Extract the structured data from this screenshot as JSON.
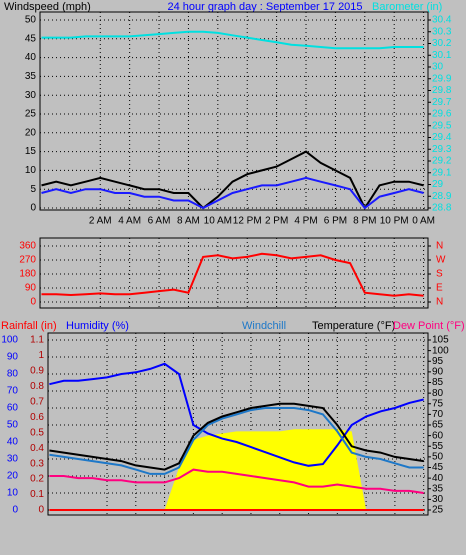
{
  "chart_data": [
    {
      "type": "line",
      "title": "24 hour graph day : September 17 2015",
      "ylabel": "Windspeed (mph)",
      "y2label": "Barometer (in)",
      "x": [
        -2,
        -1,
        0,
        1,
        2,
        3,
        4,
        5,
        6,
        7,
        8,
        9,
        10,
        11,
        12,
        13,
        14,
        15,
        16,
        17,
        18,
        19,
        20,
        21,
        22,
        23,
        24
      ],
      "xlim": [
        -2.1,
        24.3
      ],
      "xticks": [
        {
          "value": 2,
          "label": "2 AM"
        },
        {
          "value": 4,
          "label": "4 AM"
        },
        {
          "value": 6,
          "label": "6 AM"
        },
        {
          "value": 8,
          "label": "8 AM"
        },
        {
          "value": 10,
          "label": "10 AM"
        },
        {
          "value": 12,
          "label": "12 PM"
        },
        {
          "value": 14,
          "label": "2 PM"
        },
        {
          "value": 16,
          "label": "4 PM"
        },
        {
          "value": 18,
          "label": "6 PM"
        },
        {
          "value": 20,
          "label": "8 PM"
        },
        {
          "value": 22,
          "label": "10 PM"
        },
        {
          "value": 24,
          "label": "0 AM"
        }
      ],
      "ylim": [
        0,
        50
      ],
      "yticks": [
        0,
        5,
        10,
        15,
        20,
        25,
        30,
        35,
        40,
        45,
        50
      ],
      "y2lim": [
        28.8,
        30.4
      ],
      "y2ticks": [
        28.8,
        28.9,
        29,
        29.1,
        29.2,
        29.3,
        29.4,
        29.5,
        29.6,
        29.7,
        29.8,
        29.9,
        30,
        30.1,
        30.2,
        30.3,
        30.4
      ],
      "grid": true,
      "series": [
        {
          "color": "#000000",
          "values": [
            6,
            7,
            6,
            7,
            8,
            7,
            6,
            5,
            5,
            4,
            4,
            0,
            3,
            7,
            9,
            10,
            11,
            13,
            15,
            12,
            10,
            8,
            0,
            6,
            7,
            7,
            6
          ]
        },
        {
          "color": "#1a1aff",
          "values": [
            4,
            5,
            4,
            5,
            5,
            4,
            4,
            3,
            3,
            2,
            2,
            0,
            2,
            4,
            5,
            6,
            6,
            7,
            8,
            7,
            6,
            5,
            0,
            3,
            4,
            5,
            4
          ]
        },
        {
          "color": "#00e0e0",
          "axis": "y2",
          "values": [
            30.25,
            30.25,
            30.25,
            30.26,
            30.26,
            30.26,
            30.26,
            30.27,
            30.28,
            30.29,
            30.3,
            30.3,
            30.29,
            30.27,
            30.25,
            30.23,
            30.21,
            30.19,
            30.18,
            30.17,
            30.16,
            30.16,
            30.16,
            30.16,
            30.17,
            30.17,
            30.17
          ]
        }
      ]
    },
    {
      "type": "line",
      "ylim": [
        0,
        360
      ],
      "yticks": [
        0,
        90,
        180,
        270,
        360
      ],
      "y2ticks": [
        {
          "value": 0,
          "label": "N"
        },
        {
          "value": 90,
          "label": "E"
        },
        {
          "value": 180,
          "label": "S"
        },
        {
          "value": 270,
          "label": "W"
        },
        {
          "value": 360,
          "label": "N"
        }
      ],
      "grid": true,
      "series": [
        {
          "color": "#ff0000",
          "values": [
            50,
            50,
            45,
            50,
            55,
            50,
            50,
            60,
            70,
            80,
            60,
            290,
            300,
            280,
            290,
            310,
            300,
            280,
            290,
            300,
            270,
            250,
            60,
            50,
            40,
            50,
            40
          ]
        }
      ]
    },
    {
      "type": "line",
      "ylabel": "Humidity (%)",
      "y3label": "Rainfall (in)",
      "ylim": [
        0,
        100
      ],
      "yticks": [
        0,
        10,
        20,
        30,
        40,
        50,
        60,
        70,
        80,
        90,
        100
      ],
      "y2lim": [
        25,
        105
      ],
      "y2ticks": [
        25,
        30,
        35,
        40,
        45,
        50,
        55,
        60,
        65,
        70,
        75,
        80,
        85,
        90,
        95,
        100,
        105
      ],
      "y3lim": [
        0,
        1.1
      ],
      "y3ticks": [
        0,
        0.1,
        0.2,
        0.3,
        0.4,
        0.5,
        0.6,
        0.7,
        0.8,
        0.9,
        1,
        1.1
      ],
      "grid": true,
      "series": [
        {
          "color": "#ffff00",
          "axis": "y2",
          "area": true,
          "values": [
            25,
            25,
            25,
            25,
            25,
            25,
            25,
            25,
            25,
            45,
            58,
            60,
            61,
            62,
            62,
            62,
            62,
            63,
            63,
            63,
            63,
            62,
            25,
            25,
            25,
            25,
            25
          ]
        },
        {
          "color": "#ff0000",
          "axis": "y3",
          "values": [
            0,
            0,
            0,
            0,
            0,
            0,
            0,
            0,
            0,
            0,
            0,
            0,
            0,
            0,
            0,
            0,
            0,
            0,
            0,
            0,
            0,
            0,
            0,
            0,
            0,
            0,
            0
          ]
        },
        {
          "name": "Humidity (%)",
          "color": "#0000ff",
          "values": [
            74,
            76,
            76,
            77,
            78,
            80,
            81,
            83,
            86,
            80,
            50,
            45,
            42,
            40,
            37,
            34,
            31,
            28,
            26,
            27,
            38,
            50,
            55,
            58,
            60,
            63,
            65
          ]
        },
        {
          "name": "Windchill",
          "color": "#1e78c8",
          "axis": "y2",
          "values": [
            51,
            50,
            49,
            48,
            47,
            46,
            44,
            42,
            42,
            45,
            58,
            65,
            68,
            70,
            72,
            73,
            73,
            73,
            72,
            70,
            62,
            52,
            50,
            49,
            47,
            45,
            45
          ]
        },
        {
          "name": "Temperature (°F)",
          "color": "#000000",
          "axis": "y2",
          "values": [
            53,
            52,
            51,
            50,
            49,
            48,
            46,
            45,
            44,
            47,
            60,
            66,
            69,
            71,
            73,
            74,
            75,
            75,
            74,
            73,
            65,
            55,
            53,
            52,
            50,
            49,
            48
          ]
        },
        {
          "name": "Dew Point (°F)",
          "color": "#ff0080",
          "axis": "y2",
          "values": [
            41,
            41,
            40,
            40,
            39,
            39,
            38,
            38,
            38,
            40,
            44,
            43,
            43,
            42,
            41,
            40,
            39,
            38,
            36,
            36,
            37,
            36,
            35,
            35,
            34,
            34,
            33
          ]
        }
      ]
    }
  ]
}
